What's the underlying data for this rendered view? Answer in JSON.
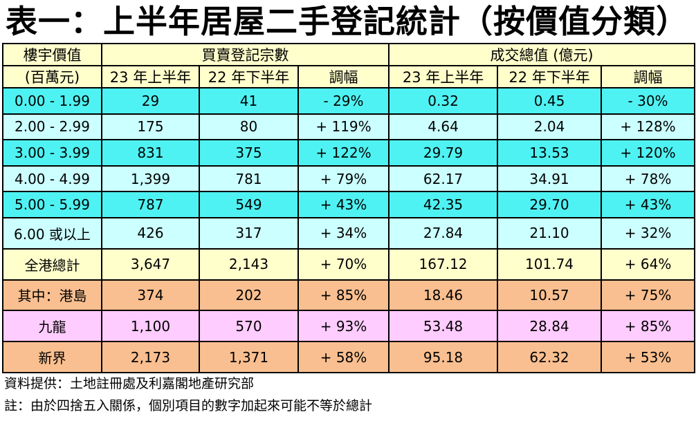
{
  "title": "表一：上半年居屋二手登記統計（按價值分類）",
  "chart_data": {
    "type": "table",
    "header": {
      "col1_line1": "樓宇價值",
      "col1_line2": "(百萬元)",
      "group1": "買賣登記宗數",
      "group2": "成交總值 (億元)",
      "sub": [
        "23 年上半年",
        "22 年下半年",
        "調幅",
        "23 年上半年",
        "22 年下半年",
        "調幅"
      ]
    },
    "rows": [
      {
        "label": "0.00 - 1.99",
        "cells": [
          "29",
          "41",
          "- 29%",
          "0.32",
          "0.45",
          "- 30%"
        ],
        "color": "#4ff2f2"
      },
      {
        "label": "2.00 - 2.99",
        "cells": [
          "175",
          "80",
          "+ 119%",
          "4.64",
          "2.04",
          "+ 128%"
        ],
        "color": "#ccffff"
      },
      {
        "label": "3.00 - 3.99",
        "cells": [
          "831",
          "375",
          "+ 122%",
          "29.79",
          "13.53",
          "+ 120%"
        ],
        "color": "#4ff2f2"
      },
      {
        "label": "4.00 - 4.99",
        "cells": [
          "1,399",
          "781",
          "+ 79%",
          "62.17",
          "34.91",
          "+ 78%"
        ],
        "color": "#ccffff"
      },
      {
        "label": "5.00 - 5.99",
        "cells": [
          "787",
          "549",
          "+ 43%",
          "42.35",
          "29.70",
          "+ 43%"
        ],
        "color": "#4ff2f2"
      },
      {
        "label": "6.00 或以上",
        "cells": [
          "426",
          "317",
          "+ 34%",
          "27.84",
          "21.10",
          "+ 32%"
        ],
        "color": "#ccffff"
      },
      {
        "label": "全港總計",
        "cells": [
          "3,647",
          "2,143",
          "+ 70%",
          "167.12",
          "101.74",
          "+ 64%"
        ],
        "color": "#ffffcc"
      },
      {
        "label": "其中：港島",
        "cells": [
          "374",
          "202",
          "+ 85%",
          "18.46",
          "10.57",
          "+ 75%"
        ],
        "color": "#f9bf90"
      },
      {
        "label": "九龍",
        "cells": [
          "1,100",
          "570",
          "+ 93%",
          "53.48",
          "28.84",
          "+ 85%"
        ],
        "color": "#ffccff"
      },
      {
        "label": "新界",
        "cells": [
          "2,173",
          "1,371",
          "+ 58%",
          "95.18",
          "62.32",
          "+ 53%"
        ],
        "color": "#f9bf90"
      }
    ]
  },
  "footer": {
    "source": "資料提供：土地註冊處及利嘉閣地產研究部",
    "note": "註：由於四捨五入關係，個別項目的數字加起來可能不等於總計"
  }
}
